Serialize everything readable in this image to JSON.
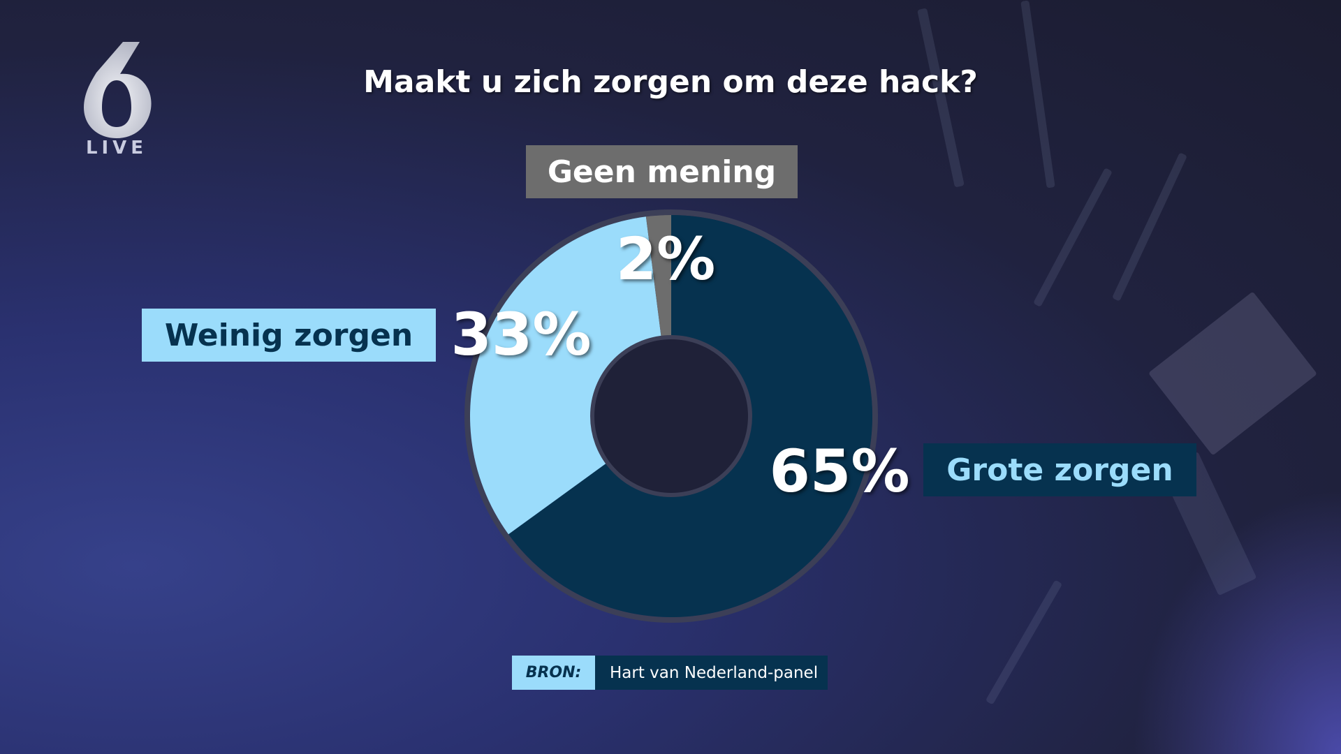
{
  "logo": {
    "text": "6",
    "subtext": "LIVE"
  },
  "chart_data": {
    "type": "pie",
    "subtype": "donut",
    "title": "Maakt u zich zorgen om deze hack?",
    "categories": [
      "Grote zorgen",
      "Weinig zorgen",
      "Geen mening"
    ],
    "values": [
      65,
      33,
      2
    ],
    "data_labels": [
      "65%",
      "33%",
      "2%"
    ],
    "colors": [
      "#06324f",
      "#9bdcfb",
      "#6d6d6d"
    ],
    "start": "top",
    "direction": "clockwise"
  },
  "source": {
    "label": "BRON:",
    "value": "Hart van Nederland-panel"
  }
}
